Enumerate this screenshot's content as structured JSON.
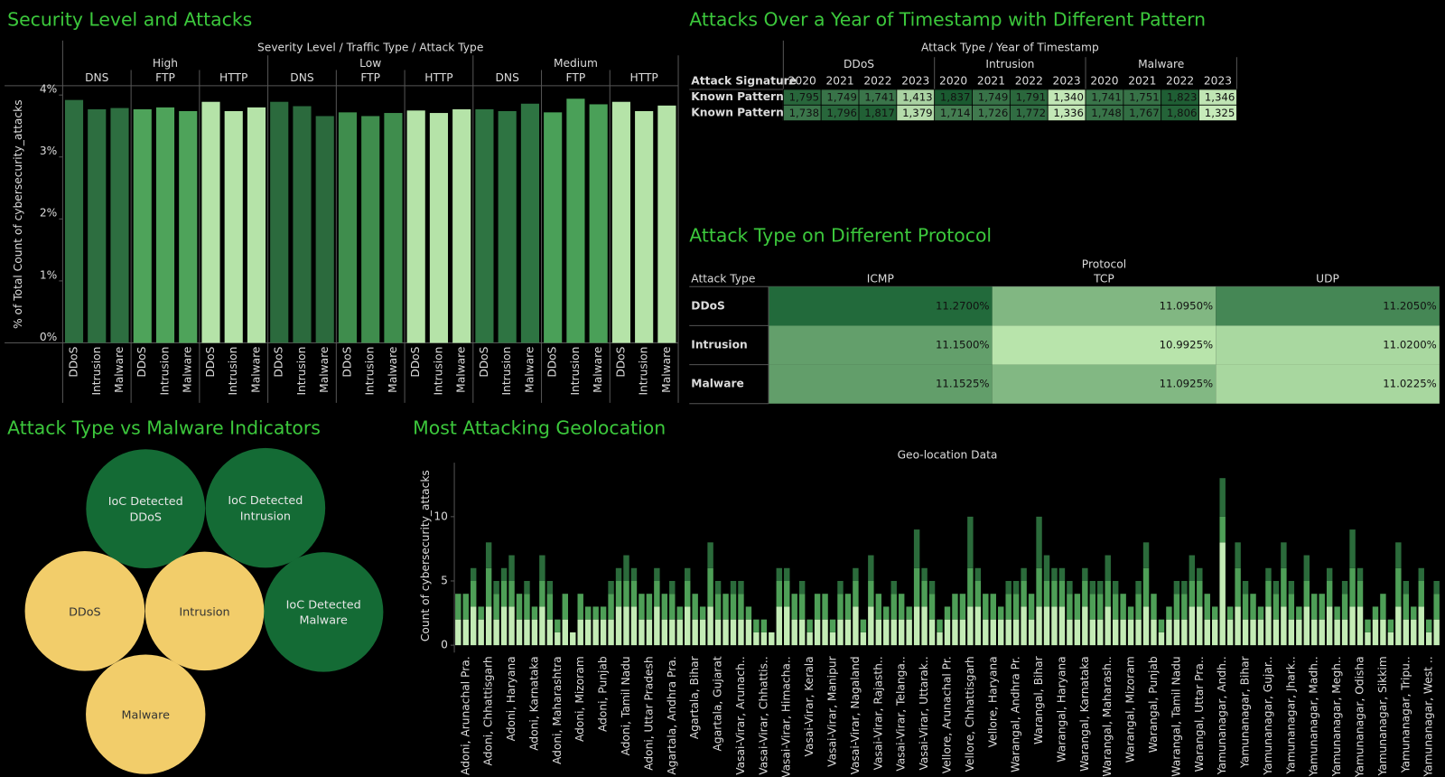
{
  "chart_data": [
    {
      "type": "grouped-bar",
      "title": "Security Level and Attacks",
      "header": "Severity Level / Traffic Type / Attack Type",
      "y_label": "% of Total Count of cybersecurity_attacks",
      "ylim": [
        0,
        4.15
      ],
      "yticks": [
        {
          "value": 0,
          "label": "0%"
        },
        {
          "value": 1,
          "label": "1%"
        },
        {
          "value": 2,
          "label": "2%"
        },
        {
          "value": 3,
          "label": "3%"
        },
        {
          "value": 4,
          "label": "4%"
        }
      ],
      "groups": [
        {
          "name": "High",
          "subgroups": [
            {
              "name": "DNS",
              "color": "#2d6e40",
              "categories": [
                "DDoS",
                "Intrusion",
                "Malware"
              ],
              "values": [
                3.92,
                3.77,
                3.79
              ]
            },
            {
              "name": "FTP",
              "color": "#4ea35a",
              "categories": [
                "DDoS",
                "Intrusion",
                "Malware"
              ],
              "values": [
                3.77,
                3.8,
                3.74
              ]
            },
            {
              "name": "HTTP",
              "color": "#b5e3a8",
              "categories": [
                "DDoS",
                "Intrusion",
                "Malware"
              ],
              "values": [
                3.89,
                3.74,
                3.8
              ]
            }
          ]
        },
        {
          "name": "Low",
          "subgroups": [
            {
              "name": "DNS",
              "color": "#2b6a3d",
              "categories": [
                "DDoS",
                "Intrusion",
                "Malware"
              ],
              "values": [
                3.89,
                3.82,
                3.66
              ]
            },
            {
              "name": "FTP",
              "color": "#3f8d4d",
              "categories": [
                "DDoS",
                "Intrusion",
                "Malware"
              ],
              "values": [
                3.72,
                3.66,
                3.71
              ]
            },
            {
              "name": "HTTP",
              "color": "#b5e3a8",
              "categories": [
                "DDoS",
                "Intrusion",
                "Malware"
              ],
              "values": [
                3.75,
                3.71,
                3.77
              ]
            }
          ]
        },
        {
          "name": "Medium",
          "subgroups": [
            {
              "name": "DNS",
              "color": "#2e7442",
              "categories": [
                "DDoS",
                "Intrusion",
                "Malware"
              ],
              "values": [
                3.77,
                3.74,
                3.86
              ]
            },
            {
              "name": "FTP",
              "color": "#4aa058",
              "categories": [
                "DDoS",
                "Intrusion",
                "Malware"
              ],
              "values": [
                3.72,
                3.94,
                3.85
              ]
            },
            {
              "name": "HTTP",
              "color": "#b5e3a8",
              "categories": [
                "DDoS",
                "Intrusion",
                "Malware"
              ],
              "values": [
                3.89,
                3.74,
                3.83
              ]
            }
          ]
        }
      ]
    },
    {
      "type": "table-heatmap",
      "title": "Attacks Over a Year of Timestamp with Different Pattern",
      "header": "Attack Type / Year of Timestamp",
      "row_header": "Attack Signature",
      "colors": [
        "#c7ebba",
        "#1a5a30"
      ],
      "column_groups": [
        {
          "name": "DDoS",
          "years": [
            "2020",
            "2021",
            "2022",
            "2023"
          ]
        },
        {
          "name": "Intrusion",
          "years": [
            "2020",
            "2021",
            "2022",
            "2023"
          ]
        },
        {
          "name": "Malware",
          "years": [
            "2020",
            "2021",
            "2022",
            "2023"
          ]
        }
      ],
      "rows": [
        {
          "name": "Known Pattern A",
          "values": [
            1795,
            1749,
            1741,
            1413,
            1837,
            1749,
            1791,
            1340,
            1741,
            1751,
            1823,
            1346
          ],
          "value_labels": [
            "1,795",
            "1,749",
            "1,741",
            "1,413",
            "1,837",
            "1,749",
            "1,791",
            "1,340",
            "1,741",
            "1,751",
            "1,823",
            "1,346"
          ]
        },
        {
          "name": "Known Pattern B",
          "values": [
            1738,
            1796,
            1817,
            1379,
            1714,
            1726,
            1772,
            1336,
            1748,
            1767,
            1806,
            1325
          ],
          "value_labels": [
            "1,738",
            "1,796",
            "1,817",
            "1,379",
            "1,714",
            "1,726",
            "1,772",
            "1,336",
            "1,748",
            "1,767",
            "1,806",
            "1,325"
          ]
        }
      ]
    },
    {
      "type": "heatmap",
      "title": "Attack Type on Different Protocol",
      "header": "Protocol",
      "row_header": "Attack Type",
      "colors": [
        "#b8e4ab",
        "#226a3b"
      ],
      "columns": [
        "ICMP",
        "TCP",
        "UDP"
      ],
      "rows": [
        {
          "name": "DDoS",
          "values": [
            11.27,
            11.095,
            11.205
          ],
          "value_labels": [
            "11.2700%",
            "11.0950%",
            "11.2050%"
          ]
        },
        {
          "name": "Intrusion",
          "values": [
            11.15,
            10.9925,
            11.02
          ],
          "value_labels": [
            "11.1500%",
            "10.9925%",
            "11.0200%"
          ]
        },
        {
          "name": "Malware",
          "values": [
            11.1525,
            11.0925,
            11.0225
          ],
          "value_labels": [
            "11.1525%",
            "11.0925%",
            "11.0225%"
          ]
        }
      ]
    },
    {
      "type": "bubble",
      "title": "Attack Type vs Malware Indicators",
      "bubbles": [
        {
          "label": "IoC Detected DDoS",
          "value": 6620,
          "color": "#146b35"
        },
        {
          "label": "IoC Detected Intrusion",
          "value": 6700,
          "color": "#146b35"
        },
        {
          "label": "IoC Detected Malware",
          "value": 6690,
          "color": "#146b35"
        },
        {
          "label": "DDoS",
          "value": 6710,
          "color": "#f2cd6a"
        },
        {
          "label": "Intrusion",
          "value": 6600,
          "color": "#f2cd6a"
        },
        {
          "label": "Malware",
          "value": 6680,
          "color": "#f2cd6a"
        }
      ]
    },
    {
      "type": "stacked-bar",
      "title": "Most Attacking Geolocation",
      "x_label": "Geo-location Data",
      "y_label": "Count of cybersecurity_attacks",
      "ylim": [
        0,
        14.2
      ],
      "yticks": [
        0,
        5,
        10
      ],
      "categories": [
        null,
        "Adoni, Arunachal Pra.",
        null,
        null,
        "Adoni, Chhattisgarh",
        null,
        null,
        "Adoni, Haryana",
        null,
        null,
        "Adoni, Karnataka",
        null,
        null,
        "Adoni, Maharashtra",
        null,
        null,
        "Adoni, Mizoram",
        null,
        null,
        "Adoni, Punjab",
        null,
        null,
        "Adoni, Tamil Nadu",
        null,
        null,
        "Adoni, Uttar Pradesh",
        null,
        null,
        "Agartala, Andhra Pra.",
        null,
        null,
        "Agartala, Bihar",
        null,
        null,
        "Agartala, Gujarat",
        null,
        null,
        "Vasai-Virar, Arunach..",
        null,
        null,
        "Vasai-Virar, Chhattis..",
        null,
        null,
        "Vasai-Virar, Himacha..",
        null,
        null,
        "Vasai-Virar, Kerala",
        null,
        null,
        "Vasai-Virar, Manipur",
        null,
        null,
        "Vasai-Virar, Nagaland",
        null,
        null,
        "Vasai-Virar, Rajasth..",
        null,
        null,
        "Vasai-Virar, Telanga..",
        null,
        null,
        "Vasai-Virar, Uttarak..",
        null,
        null,
        "Vellore, Arunachal Pr.",
        null,
        null,
        "Vellore, Chhattisgarh",
        null,
        null,
        "Vellore, Haryana",
        null,
        null,
        "Warangal, Andhra Pr.",
        null,
        null,
        "Warangal, Bihar",
        null,
        null,
        "Warangal, Haryana",
        null,
        null,
        "Warangal, Karnataka",
        null,
        null,
        "Warangal, Maharash..",
        null,
        null,
        "Warangal, Mizoram",
        null,
        null,
        "Warangal, Punjab",
        null,
        null,
        "Warangal, Tamil Nadu",
        null,
        null,
        "Warangal, Uttar Pra..",
        null,
        null,
        "Yamunanagar, Andh..",
        null,
        null,
        "Yamunanagar, Bihar",
        null,
        null,
        "Yamunanagar, Gujar..",
        null,
        null,
        "Yamunanagar, Jhark..",
        null,
        null,
        "Yamunanagar, Madh..",
        null,
        null,
        "Yamunanagar, Megh..",
        null,
        null,
        "Yamunanagar, Odisha",
        null,
        null,
        "Yamunanagar, Sikkim",
        null,
        null,
        "Yamunanagar, Tripu..",
        null,
        null,
        "Yamunanagar, West ..",
        null
      ],
      "series": [
        {
          "color": "#c3ebb5",
          "values": [
            2,
            2,
            3,
            2,
            3,
            2,
            3,
            3,
            2,
            2,
            2,
            3,
            2,
            1,
            2,
            1,
            2,
            2,
            2,
            2,
            2,
            3,
            3,
            3,
            2,
            2,
            3,
            2,
            2,
            2,
            3,
            2,
            2,
            3,
            2,
            2,
            2,
            2,
            2,
            1,
            1,
            1,
            3,
            3,
            2,
            2,
            1,
            2,
            2,
            1,
            2,
            2,
            3,
            1,
            3,
            2,
            2,
            2,
            2,
            2,
            3,
            3,
            2,
            1,
            2,
            2,
            2,
            3,
            3,
            2,
            2,
            2,
            2,
            2,
            3,
            2,
            3,
            3,
            3,
            3,
            2,
            2,
            3,
            2,
            2,
            3,
            2,
            2,
            2,
            2,
            3,
            2,
            1,
            2,
            2,
            2,
            3,
            3,
            2,
            2,
            8,
            2,
            3,
            2,
            2,
            2,
            3,
            2,
            3,
            2,
            2,
            3,
            2,
            2,
            3,
            2,
            2,
            3,
            3,
            1,
            2,
            2,
            1,
            3,
            2,
            2,
            3,
            1,
            2
          ]
        },
        {
          "color": "#4e9f57",
          "values": [
            2,
            2,
            2,
            1,
            3,
            2,
            2,
            2,
            2,
            2,
            1,
            2,
            2,
            1,
            2,
            0,
            2,
            1,
            1,
            1,
            2,
            2,
            2,
            2,
            2,
            2,
            2,
            2,
            2,
            1,
            2,
            2,
            1,
            3,
            2,
            2,
            2,
            2,
            1,
            1,
            1,
            0,
            2,
            2,
            2,
            2,
            1,
            2,
            2,
            1,
            2,
            2,
            2,
            1,
            2,
            2,
            1,
            2,
            2,
            1,
            3,
            2,
            2,
            1,
            1,
            2,
            2,
            3,
            2,
            2,
            2,
            1,
            2,
            2,
            2,
            2,
            3,
            2,
            2,
            2,
            2,
            2,
            2,
            2,
            2,
            2,
            2,
            2,
            1,
            2,
            3,
            2,
            1,
            1,
            2,
            2,
            2,
            2,
            2,
            1,
            2,
            1,
            3,
            2,
            2,
            1,
            2,
            2,
            3,
            2,
            1,
            2,
            2,
            2,
            2,
            1,
            2,
            3,
            2,
            1,
            1,
            2,
            1,
            3,
            2,
            1,
            2,
            1,
            2
          ]
        },
        {
          "color": "#2b6b3b",
          "values": [
            0,
            0,
            1,
            0,
            2,
            1,
            1,
            2,
            0,
            1,
            0,
            2,
            1,
            0,
            0,
            0,
            0,
            0,
            0,
            0,
            1,
            1,
            2,
            1,
            0,
            0,
            1,
            0,
            1,
            0,
            1,
            0,
            0,
            2,
            1,
            0,
            1,
            1,
            0,
            0,
            0,
            0,
            1,
            1,
            0,
            1,
            0,
            0,
            0,
            0,
            1,
            0,
            1,
            0,
            2,
            0,
            0,
            1,
            0,
            0,
            3,
            1,
            1,
            0,
            0,
            0,
            0,
            4,
            1,
            0,
            0,
            0,
            1,
            1,
            1,
            0,
            4,
            2,
            1,
            1,
            1,
            0,
            1,
            1,
            1,
            2,
            1,
            0,
            0,
            1,
            2,
            0,
            0,
            0,
            1,
            1,
            2,
            1,
            0,
            0,
            3,
            0,
            2,
            1,
            0,
            0,
            1,
            1,
            2,
            1,
            0,
            2,
            0,
            0,
            1,
            0,
            1,
            3,
            1,
            0,
            0,
            0,
            0,
            2,
            1,
            0,
            1,
            0,
            1
          ]
        }
      ]
    }
  ]
}
